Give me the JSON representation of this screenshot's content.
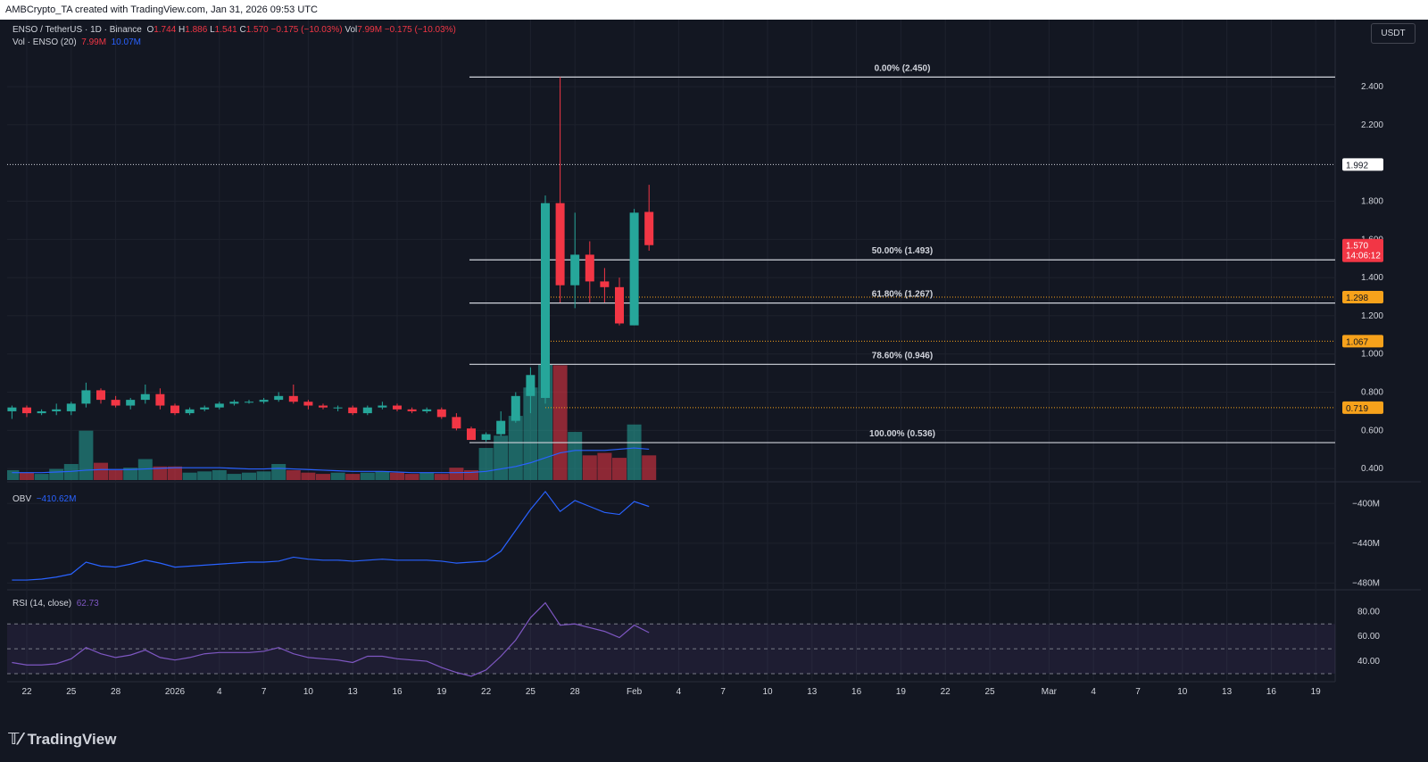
{
  "header": {
    "text": "AMBCrypto_TA created with TradingView.com, Jan 31, 2026 09:53 UTC"
  },
  "footer": {
    "brand": "TradingView"
  },
  "currency_button": "USDT",
  "legend": {
    "symbol": "ENSO / TetherUS · 1D · Binance",
    "o_label": "O",
    "o_value": "1.744",
    "h_label": "H",
    "h_value": "1.886",
    "l_label": "L",
    "l_value": "1.541",
    "c_label": "C",
    "c_value": "1.570",
    "change": "−0.175 (−10.03%)",
    "vol_label": "Vol",
    "vol_value": "7.99M",
    "vol_change": "−0.175 (−10.03%)",
    "vol_ind_label": "Vol · ENSO (20)",
    "vol_ind_v1": "7.99M",
    "vol_ind_v2": "10.07M",
    "obv_label": "OBV",
    "obv_value": "−410.62M",
    "rsi_label": "RSI (14, close)",
    "rsi_value": "62.73"
  },
  "price_badges": {
    "last_price": "1.570",
    "countdown": "14:06:12",
    "dotted_level": "1.992",
    "levels": [
      "1.298",
      "1.067",
      "0.719"
    ]
  },
  "colors": {
    "up": "#26a69a",
    "down": "#f23645",
    "vol_ma": "#2962ff",
    "obv": "#2962ff",
    "rsi": "#7e57c2",
    "orange": "#f7a21b",
    "bg": "#131722"
  },
  "chart_data": [
    {
      "type": "candlestick",
      "title": "ENSO / TetherUS · 1D · Binance",
      "ylim": [
        0.34,
        2.62
      ],
      "y_ticks": [
        0.4,
        0.6,
        0.8,
        1.0,
        1.2,
        1.4,
        1.6,
        1.8,
        2.2,
        2.4
      ],
      "y_tick_labels": [
        "0.400",
        "0.600",
        "0.800",
        "1.000",
        "1.200",
        "1.400",
        "1.600",
        "1.800",
        "2.200",
        "2.400"
      ],
      "x_tick_labels": [
        "22",
        "25",
        "28",
        "2026",
        "4",
        "7",
        "10",
        "13",
        "16",
        "19",
        "22",
        "25",
        "28",
        "Feb",
        "4",
        "7",
        "10",
        "13",
        "16",
        "19",
        "22",
        "25",
        "Mar",
        "4",
        "7",
        "10",
        "13",
        "16",
        "19"
      ],
      "x_tick_days": [
        0,
        3,
        6,
        10,
        13,
        16,
        19,
        22,
        25,
        28,
        31,
        34,
        37,
        41,
        44,
        47,
        50,
        53,
        56,
        59,
        62,
        65,
        69,
        72,
        75,
        78,
        81,
        84,
        87
      ],
      "candles": [
        {
          "date": "Dec 21",
          "o": 0.7,
          "h": 0.73,
          "l": 0.66,
          "c": 0.72
        },
        {
          "date": "Dec 22",
          "o": 0.72,
          "h": 0.73,
          "l": 0.67,
          "c": 0.69
        },
        {
          "date": "Dec 23",
          "o": 0.69,
          "h": 0.71,
          "l": 0.68,
          "c": 0.7
        },
        {
          "date": "Dec 24",
          "o": 0.7,
          "h": 0.74,
          "l": 0.68,
          "c": 0.71
        },
        {
          "date": "Dec 25",
          "o": 0.7,
          "h": 0.75,
          "l": 0.68,
          "c": 0.74
        },
        {
          "date": "Dec 26",
          "o": 0.74,
          "h": 0.85,
          "l": 0.72,
          "c": 0.81
        },
        {
          "date": "Dec 27",
          "o": 0.81,
          "h": 0.82,
          "l": 0.74,
          "c": 0.76
        },
        {
          "date": "Dec 28",
          "o": 0.76,
          "h": 0.78,
          "l": 0.72,
          "c": 0.73
        },
        {
          "date": "Dec 29",
          "o": 0.73,
          "h": 0.77,
          "l": 0.71,
          "c": 0.76
        },
        {
          "date": "Dec 30",
          "o": 0.76,
          "h": 0.84,
          "l": 0.74,
          "c": 0.79
        },
        {
          "date": "Dec 31",
          "o": 0.79,
          "h": 0.82,
          "l": 0.71,
          "c": 0.73
        },
        {
          "date": "Jan 1",
          "o": 0.73,
          "h": 0.74,
          "l": 0.68,
          "c": 0.69
        },
        {
          "date": "Jan 2",
          "o": 0.69,
          "h": 0.72,
          "l": 0.68,
          "c": 0.71
        },
        {
          "date": "Jan 3",
          "o": 0.71,
          "h": 0.73,
          "l": 0.7,
          "c": 0.72
        },
        {
          "date": "Jan 4",
          "o": 0.72,
          "h": 0.75,
          "l": 0.71,
          "c": 0.74
        },
        {
          "date": "Jan 5",
          "o": 0.74,
          "h": 0.76,
          "l": 0.73,
          "c": 0.75
        },
        {
          "date": "Jan 6",
          "o": 0.75,
          "h": 0.76,
          "l": 0.74,
          "c": 0.75
        },
        {
          "date": "Jan 7",
          "o": 0.75,
          "h": 0.77,
          "l": 0.74,
          "c": 0.76
        },
        {
          "date": "Jan 8",
          "o": 0.76,
          "h": 0.8,
          "l": 0.75,
          "c": 0.78
        },
        {
          "date": "Jan 9",
          "o": 0.78,
          "h": 0.84,
          "l": 0.74,
          "c": 0.75
        },
        {
          "date": "Jan 10",
          "o": 0.75,
          "h": 0.76,
          "l": 0.71,
          "c": 0.73
        },
        {
          "date": "Jan 11",
          "o": 0.73,
          "h": 0.74,
          "l": 0.71,
          "c": 0.72
        },
        {
          "date": "Jan 12",
          "o": 0.72,
          "h": 0.73,
          "l": 0.7,
          "c": 0.72
        },
        {
          "date": "Jan 13",
          "o": 0.72,
          "h": 0.73,
          "l": 0.68,
          "c": 0.69
        },
        {
          "date": "Jan 14",
          "o": 0.69,
          "h": 0.73,
          "l": 0.68,
          "c": 0.72
        },
        {
          "date": "Jan 15",
          "o": 0.72,
          "h": 0.75,
          "l": 0.71,
          "c": 0.73
        },
        {
          "date": "Jan 16",
          "o": 0.73,
          "h": 0.74,
          "l": 0.7,
          "c": 0.71
        },
        {
          "date": "Jan 17",
          "o": 0.71,
          "h": 0.72,
          "l": 0.69,
          "c": 0.7
        },
        {
          "date": "Jan 18",
          "o": 0.7,
          "h": 0.72,
          "l": 0.69,
          "c": 0.71
        },
        {
          "date": "Jan 19",
          "o": 0.71,
          "h": 0.72,
          "l": 0.66,
          "c": 0.67
        },
        {
          "date": "Jan 20",
          "o": 0.67,
          "h": 0.69,
          "l": 0.6,
          "c": 0.61
        },
        {
          "date": "Jan 21",
          "o": 0.61,
          "h": 0.62,
          "l": 0.55,
          "c": 0.55
        },
        {
          "date": "Jan 22",
          "o": 0.55,
          "h": 0.59,
          "l": 0.54,
          "c": 0.58
        },
        {
          "date": "Jan 23",
          "o": 0.58,
          "h": 0.7,
          "l": 0.57,
          "c": 0.65
        },
        {
          "date": "Jan 24",
          "o": 0.65,
          "h": 0.8,
          "l": 0.64,
          "c": 0.78
        },
        {
          "date": "Jan 25",
          "o": 0.78,
          "h": 0.93,
          "l": 0.69,
          "c": 0.89
        },
        {
          "date": "Jan 26",
          "o": 0.77,
          "h": 1.83,
          "l": 0.74,
          "c": 1.79
        },
        {
          "date": "Jan 27",
          "o": 1.79,
          "h": 2.45,
          "l": 1.27,
          "c": 1.36
        },
        {
          "date": "Jan 28",
          "o": 1.36,
          "h": 1.74,
          "l": 1.24,
          "c": 1.52
        },
        {
          "date": "Jan 29",
          "o": 1.52,
          "h": 1.59,
          "l": 1.27,
          "c": 1.38
        },
        {
          "date": "Jan 30",
          "o": 1.38,
          "h": 1.45,
          "l": 1.27,
          "c": 1.35
        },
        {
          "date": "Jan 31a",
          "o": 1.35,
          "h": 1.4,
          "l": 1.15,
          "c": 1.16
        },
        {
          "date": "Jan 31b",
          "o": 1.15,
          "h": 1.76,
          "l": 1.15,
          "c": 1.74
        },
        {
          "date": "Jan 31c",
          "o": 1.744,
          "h": 1.886,
          "l": 1.541,
          "c": 1.57
        }
      ],
      "volume": [
        8,
        6,
        5,
        9,
        13,
        40,
        14,
        8,
        10,
        17,
        11,
        11,
        6,
        7,
        8,
        5,
        6,
        7,
        13,
        8,
        6,
        5,
        6,
        5,
        6,
        7,
        6,
        5,
        6,
        5,
        10,
        8,
        26,
        36,
        52,
        75,
        94,
        93,
        39,
        20,
        22,
        18,
        45,
        20
      ],
      "volume_ma": [
        6,
        6,
        6,
        6.5,
        7,
        8,
        8.5,
        8.5,
        8.5,
        9,
        9.5,
        10,
        10,
        10,
        10,
        9.5,
        9,
        9,
        9.5,
        9,
        8.5,
        8,
        7.5,
        7,
        7,
        7,
        6.5,
        6,
        6,
        6,
        6,
        6.2,
        7,
        9,
        11,
        14,
        18,
        22,
        24,
        24,
        24,
        25,
        26,
        25
      ],
      "fibonacci": [
        {
          "label": "0.00% (2.450)",
          "price": 2.45
        },
        {
          "label": "50.00% (1.493)",
          "price": 1.493
        },
        {
          "label": "61.80% (1.267)",
          "price": 1.267
        },
        {
          "label": "78.60% (0.946)",
          "price": 0.946
        },
        {
          "label": "100.00% (0.536)",
          "price": 0.536
        }
      ],
      "horizontal_levels": [
        1.992,
        1.298,
        1.067,
        0.719
      ]
    },
    {
      "type": "line",
      "title": "OBV",
      "ylim": [
        -485,
        -380
      ],
      "y_ticks": [
        -400,
        -440,
        -480
      ],
      "y_tick_labels": [
        "−400M",
        "−440M",
        "−480M"
      ],
      "values": [
        -477,
        -477,
        -476,
        -474,
        -471,
        -459,
        -463,
        -464,
        -461,
        -457,
        -460,
        -464,
        -463,
        -462,
        -461,
        -460,
        -459,
        -459,
        -458,
        -454,
        -456,
        -457,
        -457,
        -458,
        -457,
        -456,
        -457,
        -457,
        -457,
        -458,
        -460,
        -459,
        -458,
        -448,
        -427,
        -406,
        -388,
        -408,
        -397,
        -403,
        -409,
        -411,
        -398,
        -403
      ]
    },
    {
      "type": "line",
      "title": "RSI (14, close)",
      "ylim": [
        25,
        96
      ],
      "y_ticks": [
        40,
        60,
        80
      ],
      "y_tick_labels": [
        "40.00",
        "60.00",
        "80.00"
      ],
      "bands": [
        30,
        50,
        70
      ],
      "values": [
        39,
        37,
        37,
        38,
        42,
        51,
        46,
        43,
        45,
        49,
        43,
        41,
        43,
        46,
        47,
        47,
        47,
        48,
        51,
        46,
        43,
        42,
        41,
        39,
        44,
        44,
        42,
        41,
        40,
        35,
        31,
        28,
        33,
        44,
        57,
        75,
        87,
        69,
        70,
        67,
        64,
        59,
        69,
        63
      ]
    }
  ]
}
